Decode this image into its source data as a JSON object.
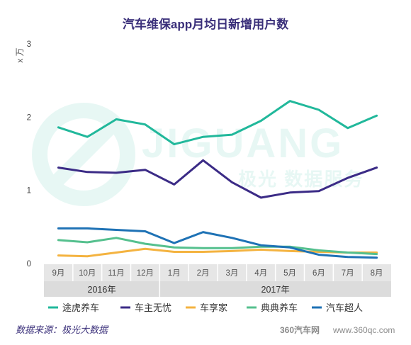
{
  "chart_data": {
    "type": "line",
    "title": "汽车维保app月均日新增用户数",
    "ylabel": "x 万",
    "ylim": [
      0,
      3
    ],
    "yticks": [
      "0",
      "1",
      "2",
      "3"
    ],
    "categories": [
      "9月",
      "10月",
      "11月",
      "12月",
      "1月",
      "2月",
      "3月",
      "4月",
      "5月",
      "6月",
      "7月",
      "8月"
    ],
    "year_groups": [
      {
        "label": "2016年",
        "count": 4
      },
      {
        "label": "2017年",
        "count": 8
      }
    ],
    "grid": false,
    "legend_position": "bottom",
    "series": [
      {
        "name": "途虎养车",
        "color": "#21b89b",
        "values": [
          1.86,
          1.73,
          1.97,
          1.9,
          1.63,
          1.73,
          1.76,
          1.95,
          2.22,
          2.1,
          1.85,
          2.02
        ]
      },
      {
        "name": "车主无忧",
        "color": "#3b2b86",
        "values": [
          1.31,
          1.25,
          1.24,
          1.28,
          1.08,
          1.41,
          1.11,
          0.9,
          0.97,
          0.99,
          1.17,
          1.31
        ]
      },
      {
        "name": "车享家",
        "color": "#f4b340",
        "values": [
          0.11,
          0.1,
          0.15,
          0.2,
          0.16,
          0.16,
          0.17,
          0.19,
          0.17,
          0.16,
          0.15,
          0.15
        ]
      },
      {
        "name": "典典养车",
        "color": "#55c08e",
        "values": [
          0.32,
          0.29,
          0.35,
          0.27,
          0.22,
          0.21,
          0.21,
          0.23,
          0.23,
          0.18,
          0.15,
          0.13
        ]
      },
      {
        "name": "汽车超人",
        "color": "#1e72b5",
        "values": [
          0.48,
          0.48,
          0.46,
          0.44,
          0.28,
          0.43,
          0.35,
          0.25,
          0.22,
          0.12,
          0.09,
          0.08
        ]
      }
    ]
  },
  "source": "数据来源：极光大数据",
  "watermark": {
    "brand": "JIGUANG",
    "tagline": "极光 数据服务",
    "site_logo": "360汽车网",
    "site_url": "www.360qc.com"
  }
}
